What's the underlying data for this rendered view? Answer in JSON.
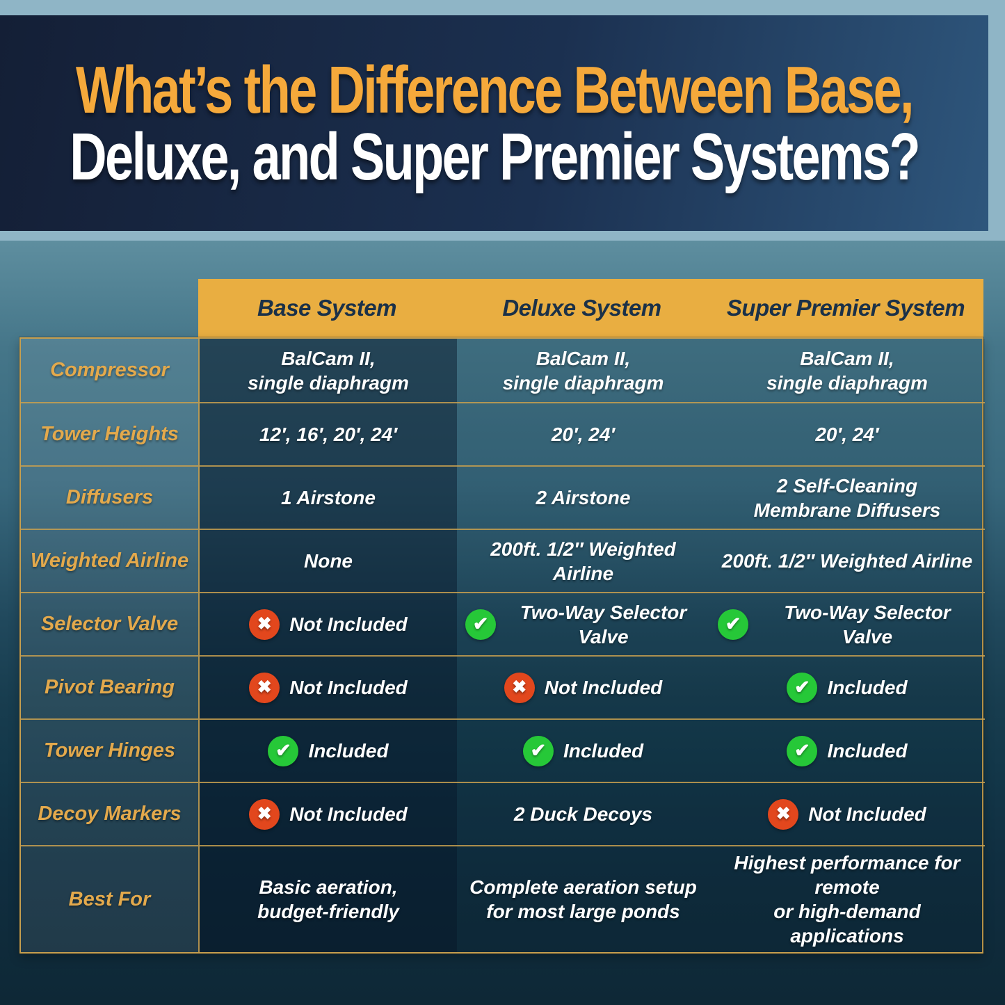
{
  "title": {
    "line1": "What’s the Difference Between Base,",
    "line2": "Deluxe, and Super Premier Systems?"
  },
  "table": {
    "columns": [
      "Base System",
      "Deluxe System",
      "Super Premier System"
    ],
    "rows": [
      {
        "label": "Compressor",
        "cells": [
          {
            "text": "BalCam II,\nsingle diaphragm"
          },
          {
            "text": "BalCam II,\nsingle diaphragm"
          },
          {
            "text": "BalCam II,\nsingle diaphragm"
          }
        ]
      },
      {
        "label": "Tower Heights",
        "cells": [
          {
            "text": "12′, 16′, 20′, 24′"
          },
          {
            "text": "20′, 24′"
          },
          {
            "text": "20′, 24′"
          }
        ]
      },
      {
        "label": "Diffusers",
        "cells": [
          {
            "text": "1 Airstone"
          },
          {
            "text": "2 Airstone"
          },
          {
            "text": "2 Self-Cleaning\nMembrane Diffusers"
          }
        ]
      },
      {
        "label": "Weighted Airline",
        "cells": [
          {
            "text": "None"
          },
          {
            "text": "200ft. 1/2″ Weighted Airline"
          },
          {
            "text": "200ft. 1/2″ Weighted Airline"
          }
        ]
      },
      {
        "label": "Selector Valve",
        "cells": [
          {
            "icon": "x",
            "text": "Not Included"
          },
          {
            "icon": "check",
            "text": "Two-Way Selector Valve"
          },
          {
            "icon": "check",
            "text": "Two-Way Selector Valve"
          }
        ]
      },
      {
        "label": "Pivot Bearing",
        "cells": [
          {
            "icon": "x",
            "text": "Not Included"
          },
          {
            "icon": "x",
            "text": "Not Included"
          },
          {
            "icon": "check",
            "text": "Included"
          }
        ]
      },
      {
        "label": "Tower Hinges",
        "cells": [
          {
            "icon": "check",
            "text": "Included"
          },
          {
            "icon": "check",
            "text": "Included"
          },
          {
            "icon": "check",
            "text": "Included"
          }
        ]
      },
      {
        "label": "Decoy Markers",
        "cells": [
          {
            "icon": "x",
            "text": "Not Included"
          },
          {
            "text": "2 Duck Decoys"
          },
          {
            "icon": "x",
            "text": "Not Included"
          }
        ]
      },
      {
        "label": "Best For",
        "cells": [
          {
            "text": "Basic aeration,\nbudget-friendly"
          },
          {
            "text": "Complete aeration setup\nfor most large ponds"
          },
          {
            "text": "Highest performance for remote\nor high-demand applications"
          }
        ]
      }
    ]
  },
  "colors": {
    "title_orange": "#f5a93b",
    "header_bar_gold": "#e9ae41",
    "line_gold": "#c8a04f",
    "label_gold": "#e3a94c",
    "check_green": "#26c838",
    "x_red": "#e2471d"
  }
}
